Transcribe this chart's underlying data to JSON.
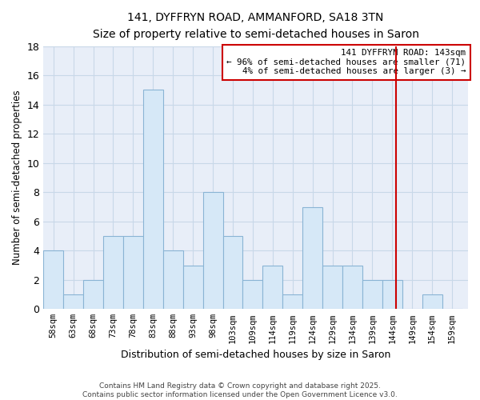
{
  "title": "141, DYFFRYN ROAD, AMMANFORD, SA18 3TN",
  "subtitle": "Size of property relative to semi-detached houses in Saron",
  "xlabel": "Distribution of semi-detached houses by size in Saron",
  "ylabel": "Number of semi-detached properties",
  "footer_line1": "Contains HM Land Registry data © Crown copyright and database right 2025.",
  "footer_line2": "Contains public sector information licensed under the Open Government Licence v3.0.",
  "bin_labels": [
    "58sqm",
    "63sqm",
    "68sqm",
    "73sqm",
    "78sqm",
    "83sqm",
    "88sqm",
    "93sqm",
    "98sqm",
    "103sqm",
    "109sqm",
    "114sqm",
    "119sqm",
    "124sqm",
    "129sqm",
    "134sqm",
    "139sqm",
    "144sqm",
    "149sqm",
    "154sqm",
    "159sqm"
  ],
  "bar_heights": [
    4,
    1,
    2,
    5,
    5,
    15,
    4,
    3,
    8,
    5,
    2,
    3,
    1,
    7,
    3,
    3,
    2,
    2,
    0,
    1,
    0
  ],
  "bar_color": "#d6e8f7",
  "bar_edge_color": "#8ab4d4",
  "property_value": 144,
  "pct_smaller": 96,
  "n_smaller": 71,
  "pct_larger": 4,
  "n_larger": 3,
  "vline_color": "#cc0000",
  "legend_box_edge": "#cc0000",
  "ylim": [
    0,
    18
  ],
  "yticks": [
    0,
    2,
    4,
    6,
    8,
    10,
    12,
    14,
    16,
    18
  ],
  "grid_color": "#c8d8e8",
  "figure_background": "#ffffff",
  "axes_background": "#e8eef8"
}
